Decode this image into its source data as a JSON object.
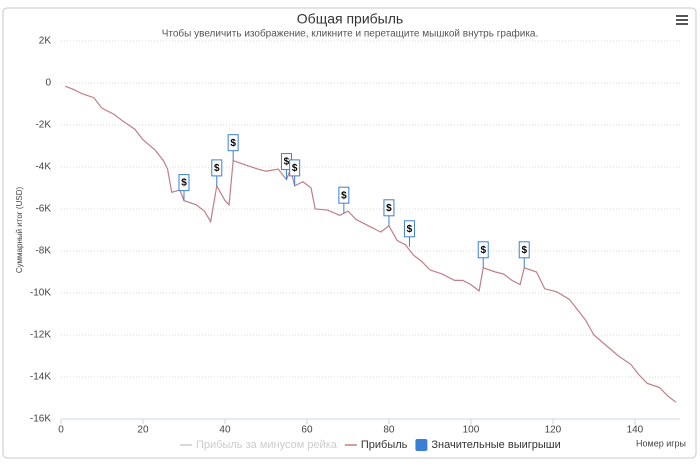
{
  "chart_data": {
    "type": "line",
    "title": "Общая прибыль",
    "subtitle": "Чтобы увеличить изображение, кликните и перетащите мышкой внутрь графика.",
    "xlabel": "Номер игры",
    "ylabel": "Суммарный итог (USD)",
    "xlim": [
      0,
      151
    ],
    "ylim": [
      -16000,
      2000
    ],
    "xticks": [
      0,
      20,
      40,
      60,
      80,
      100,
      120,
      140
    ],
    "yticks": [
      {
        "value": 2000,
        "label": "2K"
      },
      0,
      {
        "value": -2000,
        "label": "-2K"
      },
      {
        "value": -4000,
        "label": "-4K"
      },
      {
        "value": -6000,
        "label": "-6K"
      },
      {
        "value": -8000,
        "label": "-8K"
      },
      {
        "value": -10000,
        "label": "-10K"
      },
      {
        "value": -12000,
        "label": "-12K"
      },
      {
        "value": -14000,
        "label": "-14K"
      },
      {
        "value": -16000,
        "label": "-16K"
      }
    ],
    "grid": true,
    "series": [
      {
        "name": "Прибыль за минусом рейка",
        "color": "#cccccc",
        "visible": false,
        "x": [],
        "values": []
      },
      {
        "name": "Прибыль",
        "color": "#bf7f86",
        "visible": true,
        "x": [
          1,
          3,
          5,
          8,
          10,
          13,
          15,
          18,
          20,
          23,
          25,
          26,
          27,
          29,
          30,
          33,
          35,
          36.5,
          38,
          40,
          41,
          42,
          45,
          48,
          50,
          53,
          55,
          56,
          57,
          59,
          61,
          62,
          65,
          68,
          70,
          72,
          75,
          78,
          80,
          82,
          84,
          86,
          88,
          90,
          93,
          96,
          98,
          100,
          102,
          103,
          106,
          108,
          110,
          112,
          113,
          116,
          118,
          121,
          124,
          126,
          128,
          130,
          133,
          136,
          139,
          141,
          143,
          146,
          148,
          150
        ],
        "values": [
          -150,
          -300,
          -500,
          -700,
          -1200,
          -1500,
          -1800,
          -2200,
          -2700,
          -3200,
          -3700,
          -4100,
          -5200,
          -5100,
          -5600,
          -5800,
          -6100,
          -6600,
          -4900,
          -5600,
          -5800,
          -3700,
          -3900,
          -4100,
          -4200,
          -4100,
          -4600,
          -4100,
          -4900,
          -4700,
          -5000,
          -6000,
          -6050,
          -6300,
          -6100,
          -6500,
          -6800,
          -7100,
          -6800,
          -7500,
          -7700,
          -8200,
          -8500,
          -8900,
          -9100,
          -9400,
          -9400,
          -9600,
          -9900,
          -8800,
          -9000,
          -9100,
          -9400,
          -9600,
          -8800,
          -9000,
          -9800,
          -9950,
          -10300,
          -10800,
          -11300,
          -12000,
          -12500,
          -13000,
          -13400,
          -13900,
          -14300,
          -14500,
          -14900,
          -15200
        ]
      }
    ],
    "flags": {
      "name": "Значительные выигрыши",
      "color": "#3a7fd5",
      "text": "$",
      "x": [
        30,
        38,
        42,
        55,
        57,
        69,
        80,
        85,
        103,
        113
      ],
      "values": [
        -5600,
        -4900,
        -3700,
        -4600,
        -4900,
        -6200,
        -6800,
        -7800,
        -8800,
        -8800
      ]
    }
  }
}
